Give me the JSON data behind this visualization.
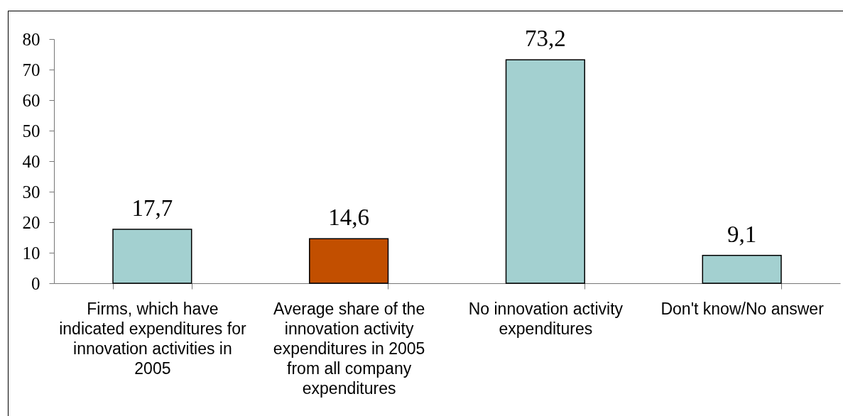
{
  "chart_data": {
    "type": "bar",
    "categories": [
      "Firms, which have indicated expenditures for innovation activities in 2005",
      "Average share of the innovation activity expenditures in 2005 from all company expenditures",
      "No innovation activity expenditures",
      "Don't know/No answer"
    ],
    "values": [
      17.7,
      14.6,
      73.2,
      9.1
    ],
    "value_labels": [
      "17,7",
      "14,6",
      "73,2",
      "9,1"
    ],
    "colors": [
      "#a3d0d0",
      "#c24f00",
      "#a3d0d0",
      "#a3d0d0"
    ],
    "ylim": [
      0,
      80
    ],
    "yticks": [
      0,
      10,
      20,
      30,
      40,
      50,
      60,
      70,
      80
    ]
  }
}
